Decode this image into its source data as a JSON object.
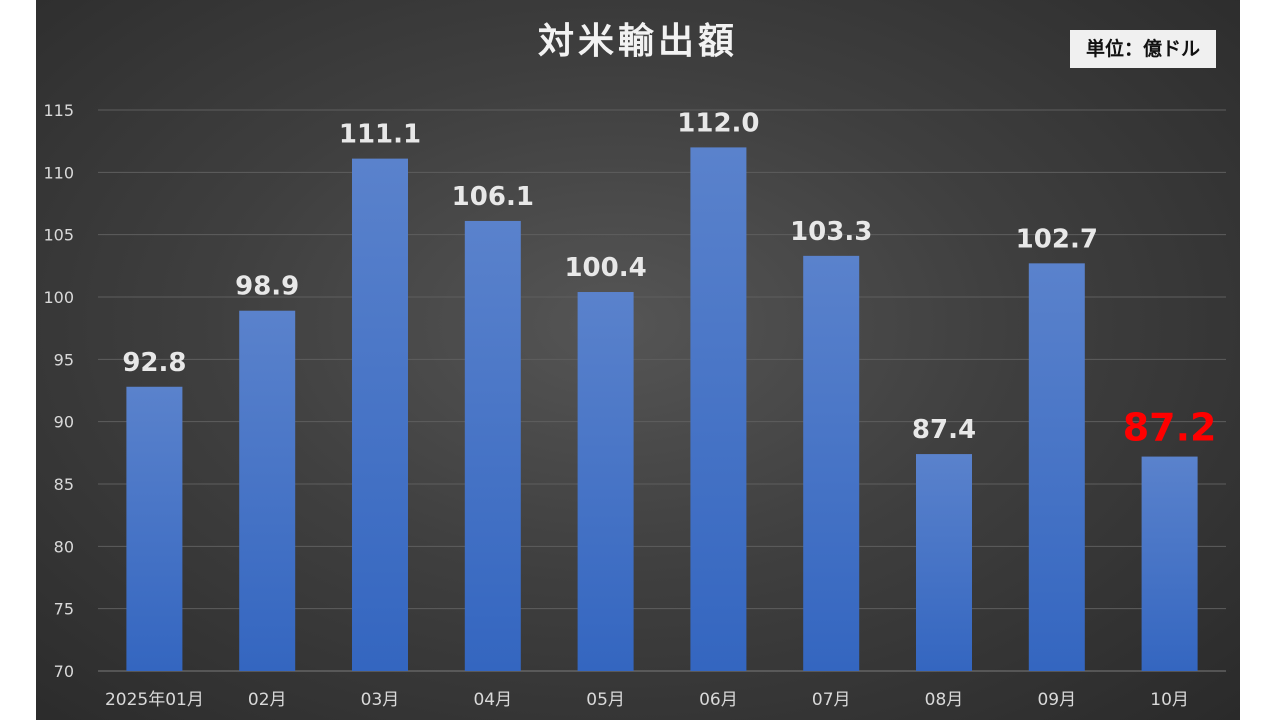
{
  "title": "対米輸出額",
  "unit_label": "単位：億ドル",
  "chart_data": {
    "type": "bar",
    "title": "対米輸出額",
    "xlabel": "",
    "ylabel": "",
    "categories": [
      "2025年01月",
      "02月",
      "03月",
      "04月",
      "05月",
      "06月",
      "07月",
      "08月",
      "09月",
      "10月"
    ],
    "values": [
      92.8,
      98.9,
      111.1,
      106.1,
      100.4,
      112.0,
      103.3,
      87.4,
      102.7,
      87.2
    ],
    "data_labels": [
      "92.8",
      "98.9",
      "111.1",
      "106.1",
      "100.4",
      "112.0",
      "103.3",
      "87.4",
      "102.7",
      "87.2"
    ],
    "ylim": [
      70,
      115
    ],
    "yticks": [
      70,
      75,
      80,
      85,
      90,
      95,
      100,
      105,
      110,
      115
    ],
    "grid": true,
    "legend": "none",
    "highlight_index": 9,
    "colors": {
      "bar": "#4472c4",
      "label": "#e8e8e8",
      "highlight_label": "#ff0000",
      "grid": "#5e5e5e",
      "tick_label": "#d9d9d9"
    }
  }
}
